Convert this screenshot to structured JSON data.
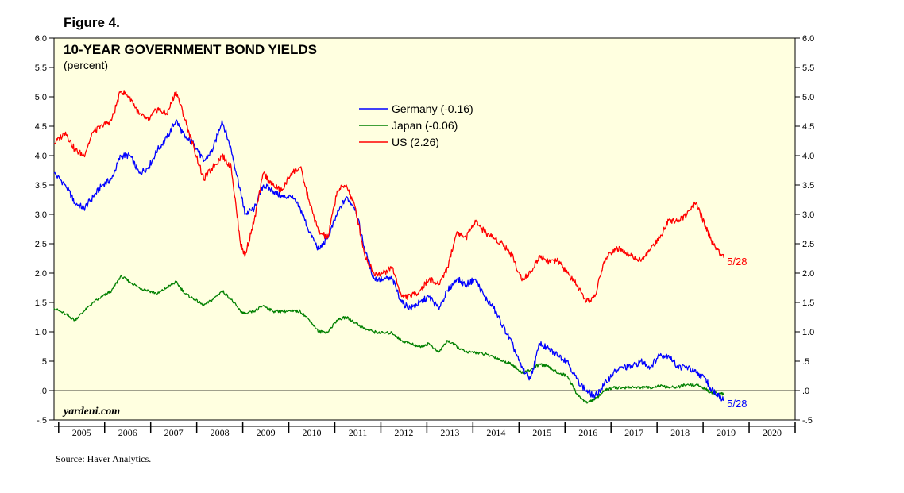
{
  "figure_label": "Figure 4.",
  "source": "Source: Haver Analytics.",
  "brand": "yardeni.com",
  "chart_data": {
    "type": "line",
    "title": "10-YEAR GOVERNMENT BOND YIELDS",
    "subtitle": "(percent)",
    "xlabel": "",
    "ylabel": "",
    "xlim": [
      2004.85,
      2020.95
    ],
    "ylim": [
      -0.5,
      6.0
    ],
    "y_ticks": [
      -0.5,
      0.0,
      0.5,
      1.0,
      1.5,
      2.0,
      2.5,
      3.0,
      3.5,
      4.0,
      4.5,
      5.0,
      5.5,
      6.0
    ],
    "y_tick_labels": [
      "-.5",
      ".0",
      ".5",
      "1.0",
      "1.5",
      "2.0",
      "2.5",
      "3.0",
      "3.5",
      "4.0",
      "4.5",
      "5.0",
      "5.5",
      "6.0"
    ],
    "x_tick_labels": [
      "2005",
      "2006",
      "2007",
      "2008",
      "2009",
      "2010",
      "2011",
      "2012",
      "2013",
      "2014",
      "2015",
      "2016",
      "2017",
      "2018",
      "2019",
      "2020"
    ],
    "reference_line": 0.0,
    "legend_position": "top-center",
    "series": [
      {
        "name": "Germany (-0.16)",
        "color": "#0000ff",
        "end_label": "5/28",
        "x": [
          2004.85,
          2005.1,
          2005.3,
          2005.5,
          2005.7,
          2005.9,
          2006.1,
          2006.3,
          2006.5,
          2006.7,
          2006.9,
          2007.1,
          2007.3,
          2007.5,
          2007.7,
          2007.9,
          2008.1,
          2008.3,
          2008.5,
          2008.7,
          2008.9,
          2009.0,
          2009.2,
          2009.4,
          2009.6,
          2009.8,
          2010.0,
          2010.2,
          2010.4,
          2010.6,
          2010.8,
          2011.0,
          2011.2,
          2011.4,
          2011.6,
          2011.8,
          2012.0,
          2012.2,
          2012.4,
          2012.6,
          2012.8,
          2013.0,
          2013.2,
          2013.4,
          2013.6,
          2013.8,
          2014.0,
          2014.2,
          2014.4,
          2014.6,
          2014.8,
          2015.0,
          2015.2,
          2015.4,
          2015.6,
          2015.8,
          2016.0,
          2016.2,
          2016.4,
          2016.6,
          2016.8,
          2017.0,
          2017.2,
          2017.4,
          2017.6,
          2017.8,
          2018.0,
          2018.2,
          2018.4,
          2018.6,
          2018.8,
          2019.0,
          2019.1,
          2019.25,
          2019.4
        ],
        "values": [
          3.7,
          3.5,
          3.2,
          3.1,
          3.3,
          3.5,
          3.6,
          4.0,
          4.0,
          3.7,
          3.8,
          4.1,
          4.3,
          4.6,
          4.3,
          4.2,
          3.9,
          4.1,
          4.6,
          4.1,
          3.4,
          3.0,
          3.1,
          3.5,
          3.4,
          3.3,
          3.3,
          3.1,
          2.7,
          2.4,
          2.6,
          3.0,
          3.3,
          3.1,
          2.4,
          1.9,
          1.9,
          1.9,
          1.5,
          1.4,
          1.5,
          1.6,
          1.4,
          1.7,
          1.9,
          1.8,
          1.9,
          1.6,
          1.4,
          1.1,
          0.8,
          0.4,
          0.2,
          0.8,
          0.7,
          0.6,
          0.5,
          0.2,
          0.0,
          -0.1,
          0.1,
          0.3,
          0.4,
          0.4,
          0.5,
          0.4,
          0.6,
          0.6,
          0.4,
          0.4,
          0.3,
          0.2,
          0.05,
          -0.05,
          -0.16
        ]
      },
      {
        "name": "Japan (-0.06)",
        "color": "#008000",
        "end_label": "",
        "x": [
          2004.85,
          2005.1,
          2005.3,
          2005.5,
          2005.7,
          2005.9,
          2006.1,
          2006.3,
          2006.5,
          2006.7,
          2006.9,
          2007.1,
          2007.3,
          2007.5,
          2007.7,
          2007.9,
          2008.1,
          2008.3,
          2008.5,
          2008.7,
          2008.9,
          2009.0,
          2009.2,
          2009.4,
          2009.6,
          2009.8,
          2010.0,
          2010.2,
          2010.4,
          2010.6,
          2010.8,
          2011.0,
          2011.2,
          2011.4,
          2011.6,
          2011.8,
          2012.0,
          2012.2,
          2012.4,
          2012.6,
          2012.8,
          2013.0,
          2013.2,
          2013.4,
          2013.6,
          2013.8,
          2014.0,
          2014.2,
          2014.4,
          2014.6,
          2014.8,
          2015.0,
          2015.2,
          2015.4,
          2015.6,
          2015.8,
          2016.0,
          2016.2,
          2016.4,
          2016.6,
          2016.8,
          2017.0,
          2017.2,
          2017.4,
          2017.6,
          2017.8,
          2018.0,
          2018.2,
          2018.4,
          2018.6,
          2018.8,
          2019.0,
          2019.1,
          2019.25,
          2019.4
        ],
        "values": [
          1.4,
          1.3,
          1.2,
          1.35,
          1.5,
          1.6,
          1.7,
          1.95,
          1.85,
          1.75,
          1.7,
          1.65,
          1.75,
          1.85,
          1.65,
          1.55,
          1.45,
          1.55,
          1.7,
          1.55,
          1.35,
          1.3,
          1.35,
          1.45,
          1.35,
          1.35,
          1.35,
          1.35,
          1.2,
          1.0,
          1.0,
          1.2,
          1.25,
          1.15,
          1.05,
          1.0,
          0.98,
          0.98,
          0.85,
          0.8,
          0.75,
          0.8,
          0.65,
          0.85,
          0.75,
          0.65,
          0.65,
          0.62,
          0.58,
          0.5,
          0.45,
          0.3,
          0.35,
          0.45,
          0.4,
          0.3,
          0.25,
          -0.05,
          -0.2,
          -0.15,
          0.0,
          0.05,
          0.05,
          0.06,
          0.05,
          0.05,
          0.08,
          0.05,
          0.06,
          0.1,
          0.1,
          0.03,
          -0.03,
          -0.05,
          -0.06
        ]
      },
      {
        "name": "US (2.26)",
        "color": "#ff0000",
        "end_label": "5/28",
        "x": [
          2004.85,
          2005.1,
          2005.3,
          2005.5,
          2005.7,
          2005.9,
          2006.1,
          2006.3,
          2006.5,
          2006.7,
          2006.9,
          2007.1,
          2007.3,
          2007.5,
          2007.7,
          2007.9,
          2008.1,
          2008.3,
          2008.5,
          2008.7,
          2008.9,
          2009.0,
          2009.2,
          2009.4,
          2009.6,
          2009.8,
          2010.0,
          2010.2,
          2010.4,
          2010.6,
          2010.8,
          2011.0,
          2011.2,
          2011.4,
          2011.6,
          2011.8,
          2012.0,
          2012.2,
          2012.4,
          2012.6,
          2012.8,
          2013.0,
          2013.2,
          2013.4,
          2013.6,
          2013.8,
          2014.0,
          2014.2,
          2014.4,
          2014.6,
          2014.8,
          2015.0,
          2015.2,
          2015.4,
          2015.6,
          2015.8,
          2016.0,
          2016.2,
          2016.4,
          2016.6,
          2016.8,
          2017.0,
          2017.2,
          2017.4,
          2017.6,
          2017.8,
          2018.0,
          2018.2,
          2018.4,
          2018.6,
          2018.8,
          2019.0,
          2019.1,
          2019.25,
          2019.4
        ],
        "values": [
          4.2,
          4.4,
          4.1,
          4.0,
          4.4,
          4.5,
          4.6,
          5.1,
          5.0,
          4.7,
          4.6,
          4.8,
          4.7,
          5.1,
          4.6,
          4.1,
          3.6,
          3.8,
          4.0,
          3.8,
          2.5,
          2.3,
          2.9,
          3.7,
          3.5,
          3.4,
          3.7,
          3.8,
          3.2,
          2.7,
          2.6,
          3.4,
          3.5,
          3.1,
          2.3,
          2.0,
          2.0,
          2.1,
          1.6,
          1.6,
          1.7,
          1.9,
          1.8,
          2.1,
          2.7,
          2.6,
          2.9,
          2.7,
          2.6,
          2.5,
          2.3,
          1.9,
          2.0,
          2.3,
          2.2,
          2.2,
          2.0,
          1.8,
          1.5,
          1.6,
          2.2,
          2.4,
          2.4,
          2.3,
          2.2,
          2.4,
          2.6,
          2.9,
          2.9,
          3.0,
          3.2,
          2.8,
          2.6,
          2.4,
          2.26
        ]
      }
    ]
  }
}
